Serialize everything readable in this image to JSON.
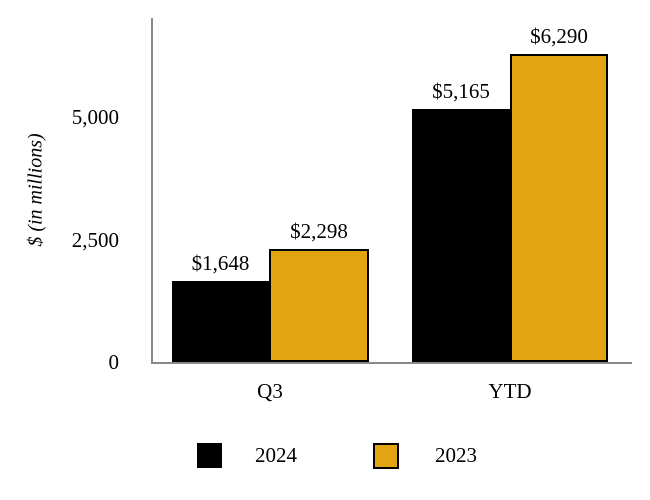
{
  "chart_data": {
    "type": "bar",
    "title": "",
    "ylabel": "$ (in millions)",
    "xlabel": "",
    "categories": [
      "Q3",
      "YTD"
    ],
    "series": [
      {
        "name": "2024",
        "color": "#000000",
        "values": [
          1648,
          5165
        ],
        "value_labels": [
          "$1,648",
          "$5,165"
        ]
      },
      {
        "name": "2023",
        "color": "#e2a511",
        "values": [
          2298,
          6290
        ],
        "value_labels": [
          "$2,298",
          "$6,290"
        ]
      }
    ],
    "yticks": [
      "0",
      "2,500",
      "5,000"
    ],
    "ytick_values": [
      0,
      2500,
      5000
    ],
    "ylim": [
      0,
      7100
    ],
    "grid": false,
    "legend_position": "bottom"
  },
  "colors": {
    "axis": "#8a8a8a",
    "background": "#ffffff",
    "bar_border": "#000000"
  }
}
